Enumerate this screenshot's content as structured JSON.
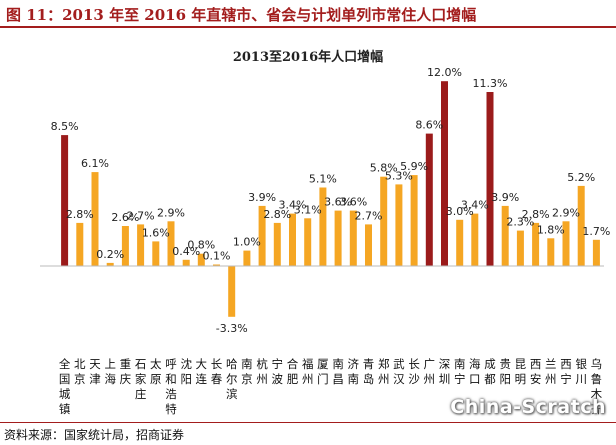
{
  "figure_title": "图 11：2013 年至 2016 年直辖市、省会与计划单列市常住人口增幅",
  "source": "资料来源：国家统计局，招商证券",
  "watermark": "China-Scratch",
  "colors": {
    "highlight": "#9b1b1b",
    "normal": "#f5a623",
    "title": "#a31d1d"
  },
  "chart_data": {
    "type": "bar",
    "title": "2013至2016年人口增幅",
    "xlabel": "",
    "ylabel": "",
    "ylim": [
      -5,
      13
    ],
    "grid": false,
    "legend": "none",
    "categories": [
      "全国",
      "北京",
      "天津",
      "上海",
      "重庆",
      "石家庄",
      "太原",
      "呼和浩特",
      "沈阳",
      "大连",
      "长春",
      "哈尔滨",
      "南京",
      "杭州",
      "宁波",
      "合肥",
      "福州",
      "厦门",
      "南昌",
      "济南",
      "青岛",
      "郑州",
      "武汉",
      "长沙",
      "广州",
      "深圳",
      "南宁",
      "海口",
      "成都",
      "贵阳",
      "昆明",
      "西安",
      "兰州",
      "西宁",
      "银川",
      "乌鲁木齐"
    ],
    "category_labels": [
      "全国城镇",
      "北京",
      "天津",
      "上海",
      "重庆",
      "石家庄",
      "太原",
      "呼和浩特",
      "沈阳",
      "大连",
      "长春",
      "哈尔滨",
      "南京",
      "杭州",
      "宁波",
      "合肥",
      "福州",
      "厦门",
      "南昌",
      "济南",
      "青岛",
      "郑州",
      "武汉",
      "长沙",
      "广州",
      "深圳",
      "南宁",
      "海口",
      "成都",
      "贵阳",
      "昆明",
      "西安",
      "兰州",
      "西宁",
      "银川",
      "乌鲁木齐"
    ],
    "values": [
      8.5,
      2.8,
      6.1,
      0.2,
      2.6,
      2.7,
      1.6,
      2.9,
      0.4,
      0.8,
      0.1,
      -3.3,
      1.0,
      3.9,
      2.8,
      3.4,
      3.1,
      5.1,
      3.6,
      3.6,
      2.7,
      5.8,
      5.3,
      5.9,
      8.6,
      12.0,
      3.0,
      3.4,
      11.3,
      3.9,
      2.3,
      2.8,
      1.8,
      2.9,
      5.2,
      1.7
    ],
    "highlight": [
      true,
      false,
      false,
      false,
      false,
      false,
      false,
      false,
      false,
      false,
      false,
      false,
      false,
      false,
      false,
      false,
      false,
      false,
      false,
      false,
      false,
      false,
      false,
      false,
      true,
      true,
      false,
      false,
      true,
      false,
      false,
      false,
      false,
      false,
      false,
      false
    ],
    "data_labels": [
      "8.5%",
      "2.8%",
      "6.1%",
      "0.2%",
      "2.6%",
      "2.7%",
      "1.6%",
      "2.9%",
      "0.4%",
      "0.8%",
      "0.1%",
      "-3.3%",
      "1.0%",
      "3.9%",
      "2.8%",
      "3.4%",
      "3.1%",
      "5.1%",
      "3.6%",
      "3.6%",
      "2.7%",
      "5.8%",
      "5.3%",
      "5.9%",
      "8.6%",
      "12.0%",
      "3.0%",
      "3.4%",
      "11.3%",
      "3.9%",
      "2.3%",
      "2.8%",
      "1.8%",
      "2.9%",
      "5.2%",
      "1.7%"
    ]
  }
}
